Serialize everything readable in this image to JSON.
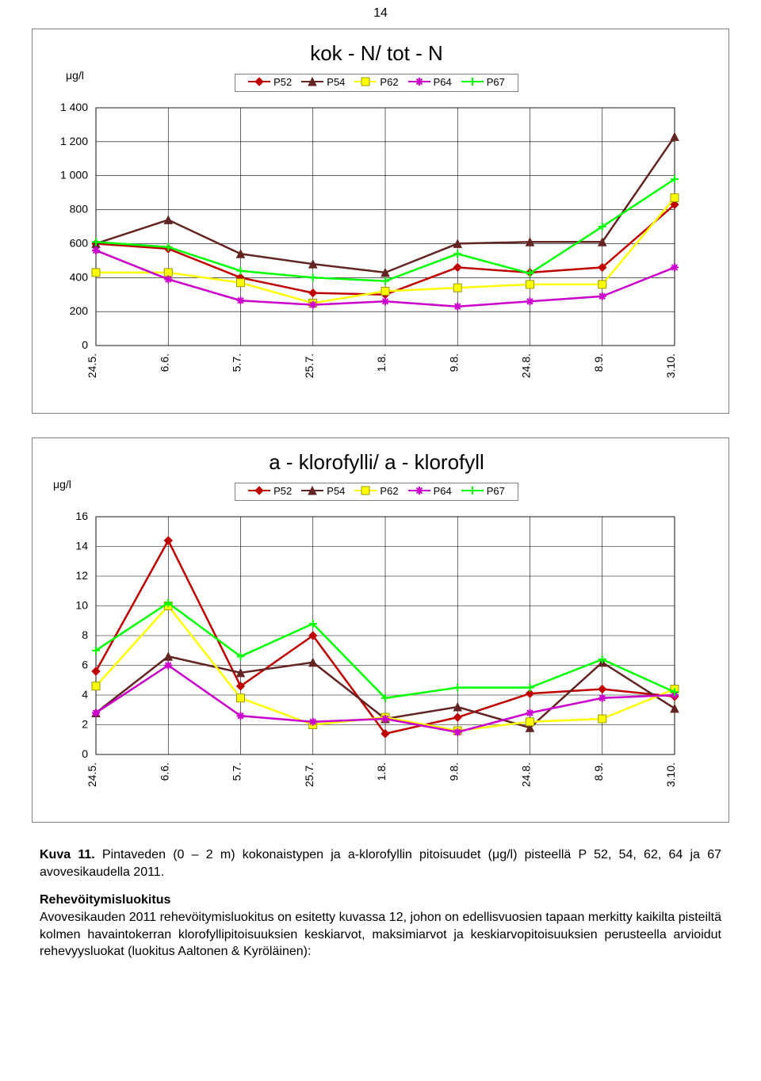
{
  "page_number": "14",
  "chart1": {
    "type": "line",
    "title": "kok - N/ tot - N",
    "ylabel": "μg/l",
    "ylim": [
      0,
      1400
    ],
    "ytick_step": 200,
    "yticks": [
      0,
      200,
      400,
      600,
      800,
      1000,
      1200,
      1400
    ],
    "categories": [
      "24.5.",
      "6.6.",
      "5.7.",
      "25.7.",
      "1.8.",
      "9.8.",
      "24.8.",
      "8.9.",
      "3.10."
    ],
    "grid_color": "#000000",
    "background_color": "#ffffff",
    "series": [
      {
        "name": "P52",
        "color": "#c00000",
        "marker": "diamond",
        "values": [
          600,
          570,
          400,
          310,
          300,
          460,
          430,
          460,
          830
        ]
      },
      {
        "name": "P54",
        "color": "#632523",
        "marker": "triangle",
        "values": [
          600,
          740,
          540,
          480,
          430,
          600,
          610,
          610,
          1230
        ]
      },
      {
        "name": "P62",
        "color": "#ffff00",
        "marker": "square",
        "values": [
          430,
          430,
          370,
          250,
          320,
          340,
          360,
          360,
          870
        ]
      },
      {
        "name": "P64",
        "color": "#cc00cc",
        "marker": "star",
        "values": [
          560,
          390,
          265,
          240,
          260,
          230,
          260,
          290,
          460
        ]
      },
      {
        "name": "P67",
        "color": "#00ff00",
        "marker": "plus",
        "values": [
          610,
          580,
          440,
          400,
          380,
          540,
          425,
          700,
          980
        ]
      }
    ]
  },
  "chart2": {
    "type": "line",
    "title": "a - klorofylli/ a - klorofyll",
    "ylabel": "μg/l",
    "ylim": [
      0,
      16
    ],
    "ytick_step": 2,
    "yticks": [
      0,
      2,
      4,
      6,
      8,
      10,
      12,
      14,
      16
    ],
    "categories": [
      "24.5.",
      "6.6.",
      "5.7.",
      "25.7.",
      "1.8.",
      "9.8.",
      "24.8.",
      "8.9.",
      "3.10."
    ],
    "grid_color": "#000000",
    "background_color": "#ffffff",
    "series": [
      {
        "name": "P52",
        "color": "#c00000",
        "marker": "diamond",
        "values": [
          5.6,
          14.4,
          4.6,
          8.0,
          1.4,
          2.5,
          4.1,
          4.4,
          3.9
        ]
      },
      {
        "name": "P54",
        "color": "#632523",
        "marker": "triangle",
        "values": [
          2.8,
          6.6,
          5.5,
          6.2,
          2.4,
          3.2,
          1.8,
          6.2,
          3.1
        ]
      },
      {
        "name": "P62",
        "color": "#ffff00",
        "marker": "square",
        "values": [
          4.6,
          10.0,
          3.8,
          2.0,
          2.5,
          1.6,
          2.2,
          2.4,
          4.4
        ]
      },
      {
        "name": "P64",
        "color": "#cc00cc",
        "marker": "star",
        "values": [
          2.8,
          6.0,
          2.6,
          2.2,
          2.4,
          1.5,
          2.8,
          3.8,
          4.0
        ]
      },
      {
        "name": "P67",
        "color": "#00ff00",
        "marker": "plus",
        "values": [
          7.0,
          10.2,
          6.6,
          8.8,
          3.8,
          4.5,
          4.5,
          6.4,
          4.2
        ]
      }
    ]
  },
  "caption": {
    "line1_prefix": "Kuva 11.",
    "line1_rest": " Pintaveden (0 – 2 m) kokonaistypen ja a-klorofyllin pitoisuudet (μg/l) pisteellä P 52, 54, 62, 64 ja 67 avovesikaudella 2011.",
    "heading": "Rehevöitymisluokitus",
    "para2": "Avovesikauden 2011 rehevöitymisluokitus on esitetty kuvassa 12, johon on edellisvuosien tapaan merkitty kaikilta pisteiltä kolmen havaintokerran klorofyllipitoisuuksien keskiarvot, maksimiarvot ja keskiarvopitoisuuksien perusteella arvioidut rehevyysluokat (luokitus Aaltonen & Kyröläinen):"
  }
}
